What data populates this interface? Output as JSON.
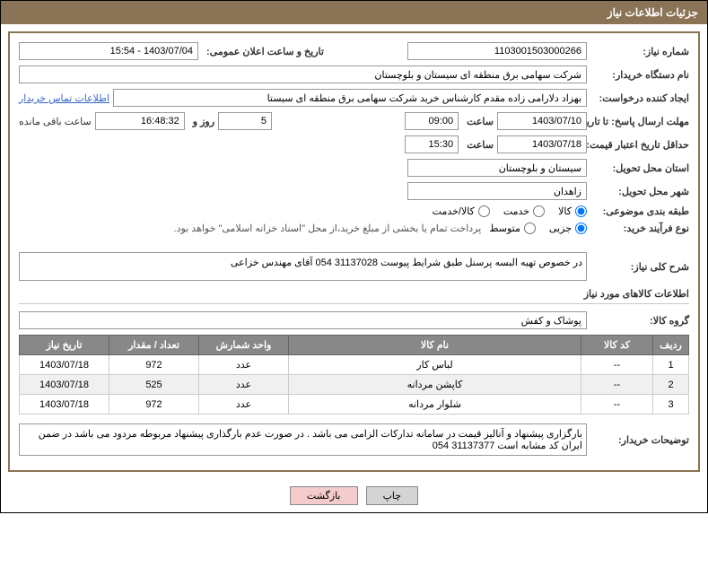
{
  "header": {
    "title": "جزئیات اطلاعات نیاز"
  },
  "fields": {
    "need_number_label": "شماره نیاز:",
    "need_number": "1103001503000266",
    "announce_date_label": "تاریخ و ساعت اعلان عمومی:",
    "announce_date": "1403/07/04 - 15:54",
    "buyer_org_label": "نام دستگاه خریدار:",
    "buyer_org": "شرکت سهامی برق منطقه ای سیستان و بلوچستان",
    "requester_label": "ایجاد کننده درخواست:",
    "requester": "بهزاد دلارامی زاده مقدم کارشناس خرید شرکت سهامی برق منطقه ای سیستا",
    "contact_link": "اطلاعات تماس خریدار",
    "response_deadline_label": "مهلت ارسال پاسخ: تا تاریخ:",
    "response_date": "1403/07/10",
    "time_label": "ساعت",
    "response_time": "09:00",
    "days_count": "5",
    "days_label": "روز و",
    "remaining_time": "16:48:32",
    "remaining_label": "ساعت باقی مانده",
    "validity_label": "حداقل تاریخ اعتبار قیمت: تا تاریخ:",
    "validity_date": "1403/07/18",
    "validity_time": "15:30",
    "delivery_province_label": "استان محل تحویل:",
    "delivery_province": "سیستان و بلوچستان",
    "delivery_city_label": "شهر محل تحویل:",
    "delivery_city": "زاهدان",
    "category_label": "طبقه بندی موضوعی:",
    "radio_goods": "کالا",
    "radio_service": "خدمت",
    "radio_goods_service": "کالا/خدمت",
    "purchase_type_label": "نوع فرآیند خرید:",
    "radio_minor": "جزیی",
    "radio_medium": "متوسط",
    "payment_note": "پرداخت تمام یا بخشی از مبلغ خرید،از محل \"اسناد خزانه اسلامی\" خواهد بود.",
    "description_label": "شرح کلی نیاز:",
    "description": "در خصوص تهیه البسه پرسنل طبق شرایط پیوست 31137028 054 آقای مهندس خزاعی",
    "goods_info_title": "اطلاعات کالاهای مورد نیاز",
    "goods_group_label": "گروه کالا:",
    "goods_group": "پوشاک و کفش",
    "buyer_notes_label": "توضیحات خریدار:",
    "buyer_notes": "بارگزاری پیشنهاد و آنالیز قیمت در سامانه تدارکات الزامی می باشد . در صورت عدم بارگذاری پیشنهاد مربوطه مردود می باشد در ضمن ایران کد مشابه است 31137377 054"
  },
  "table": {
    "headers": {
      "row": "ردیف",
      "code": "کد کالا",
      "name": "نام کالا",
      "unit": "واحد شمارش",
      "qty": "تعداد / مقدار",
      "date": "تاریخ نیاز"
    },
    "rows": [
      {
        "n": "1",
        "code": "--",
        "name": "لباس کار",
        "unit": "عدد",
        "qty": "972",
        "date": "1403/07/18"
      },
      {
        "n": "2",
        "code": "--",
        "name": "کاپشن مردانه",
        "unit": "عدد",
        "qty": "525",
        "date": "1403/07/18"
      },
      {
        "n": "3",
        "code": "--",
        "name": "شلوار مردانه",
        "unit": "عدد",
        "qty": "972",
        "date": "1403/07/18"
      }
    ]
  },
  "buttons": {
    "print": "چاپ",
    "back": "بازگشت"
  }
}
